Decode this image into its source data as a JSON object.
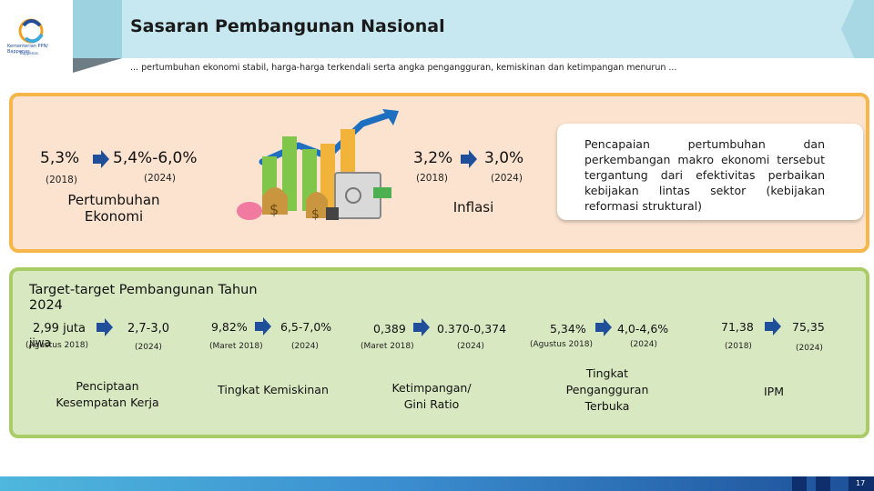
{
  "logo": {
    "name": "Kementerian PPN/ Bappenas",
    "sub": "Bappenas"
  },
  "header": {
    "title": "Sasaran Pembangunan Nasional",
    "subtitle": "... pertumbuhan ekonomi stabil, harga-harga terkendali serta angka pengangguran, kemiskinan dan ketimpangan menurun ..."
  },
  "top": {
    "growth": {
      "from_value": "5,3%",
      "from_year": "(2018)",
      "to_value": "5,4%-6,0%",
      "to_year": "(2024)",
      "label_line1": "Pertumbuhan",
      "label_line2": "Ekonomi"
    },
    "inflation": {
      "from_value": "3,2%",
      "from_year": "(2018)",
      "to_value": "3,0%",
      "to_year": "(2024)",
      "label": "Inflasi"
    },
    "note": "Pencapaian pertumbuhan dan perkembangan makro ekonomi tersebut tergantung dari efektivitas perbaikan kebijakan lintas sektor (kebijakan reformasi struktural)"
  },
  "bottom": {
    "heading_line1": "Target-target Pembangunan Tahun",
    "heading_line2": "2024",
    "jobs": {
      "from_value": "2,99 juta",
      "from_year": "(Agustus 2018)",
      "overlap": "jiwa",
      "to_value": "2,7-3,0",
      "to_year": "(2024)",
      "label_line1": "Penciptaan",
      "label_line2": "Kesempatan Kerja"
    },
    "poverty": {
      "from_value": "9,82%",
      "from_year": "(Maret 2018)",
      "to_value": "6,5-7,0%",
      "to_year": "(2024)",
      "label": "Tingkat Kemiskinan"
    },
    "gini": {
      "from_value": "0,389",
      "from_year": "(Maret 2018)",
      "to_value": "0.370-0,374",
      "to_year": "(2024)",
      "label_line1": "Ketimpangan/",
      "label_line2": "Gini Ratio"
    },
    "unemployment": {
      "from_value": "5,34%",
      "from_year": "(Agustus 2018)",
      "to_value": "4,0-4,6%",
      "to_year": "(2024)",
      "label_line1": "Tingkat",
      "label_line2": "Pengangguran",
      "label_line3": "Terbuka"
    },
    "ipm": {
      "from_value": "71,38",
      "from_year": "(2018)",
      "to_value": "75,35",
      "to_year": "(2024)",
      "label": "IPM"
    }
  },
  "footer": {
    "page": "17"
  },
  "colors": {
    "top_panel_bg": "#fbe3cf",
    "top_panel_border": "#f6b64a",
    "bottom_panel_bg": "#d8e8c0",
    "bottom_panel_border": "#aacc66",
    "arrow_blue": "#1f4e9a",
    "banner": "#c7e8f0"
  },
  "icons": [
    "logo-icon",
    "arrow-right-icon",
    "money-growth-illustration"
  ]
}
